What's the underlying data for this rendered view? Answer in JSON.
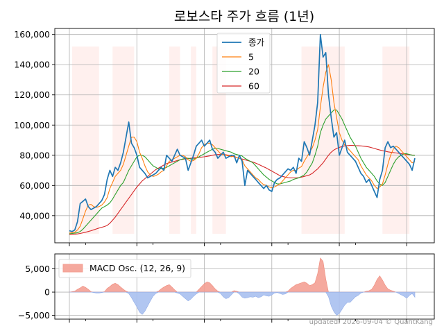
{
  "chart_data": [
    {
      "type": "line",
      "title": "로보스타 주가 흐름 (1년)",
      "ylim": [
        22000,
        164000
      ],
      "yticks": [
        {
          "value": 40000,
          "label": "40,000"
        },
        {
          "value": 60000,
          "label": "60,000"
        },
        {
          "value": 80000,
          "label": "80,000"
        },
        {
          "value": 100000,
          "label": "100,000"
        },
        {
          "value": 120000,
          "label": "120,000"
        },
        {
          "value": 140000,
          "label": "140,000"
        },
        {
          "value": 160000,
          "label": "160,000"
        }
      ],
      "grid": true,
      "legend": "top-center",
      "colors": {
        "close": "#1f77b4",
        "ma5": "#ff7f0e",
        "ma20": "#2ca02c",
        "ma60": "#d62728",
        "shade": "#fff0ee"
      },
      "series": [
        {
          "name": "종가",
          "key": "close",
          "values": [
            30000,
            29500,
            30500,
            36000,
            48000,
            49500,
            51000,
            46000,
            44000,
            45000,
            46000,
            48000,
            50000,
            54000,
            64000,
            70000,
            66000,
            72000,
            70000,
            75000,
            82000,
            92000,
            102000,
            88000,
            85000,
            80000,
            72000,
            70000,
            68000,
            65000,
            66000,
            67000,
            68000,
            70000,
            72000,
            70000,
            80000,
            78000,
            76000,
            80000,
            84000,
            80000,
            79000,
            78000,
            70000,
            75000,
            80000,
            86000,
            88000,
            90000,
            86000,
            88000,
            90000,
            84000,
            82000,
            78000,
            80000,
            82000,
            78000,
            79000,
            80000,
            80000,
            75000,
            80000,
            76000,
            60000,
            70000,
            68000,
            66000,
            64000,
            62000,
            60000,
            58000,
            60000,
            57000,
            56000,
            62000,
            64000,
            65000,
            67000,
            69000,
            71000,
            70000,
            72000,
            68000,
            78000,
            76000,
            89000,
            85000,
            80000,
            90000,
            100000,
            115000,
            160000,
            145000,
            148000,
            120000,
            105000,
            92000,
            95000,
            80000,
            85000,
            90000,
            82000,
            80000,
            78000,
            76000,
            72000,
            68000,
            66000,
            62000,
            64000,
            60000,
            56000,
            52000,
            64000,
            70000,
            85000,
            89000,
            85000,
            86000,
            84000,
            82000,
            80000,
            78000,
            76000,
            74000,
            70000,
            78000
          ]
        },
        {
          "name": "5",
          "key": "ma5",
          "values": [
            28500,
            28700,
            29000,
            30500,
            33000,
            38000,
            43000,
            47000,
            47500,
            46000,
            45500,
            46000,
            47000,
            49000,
            52000,
            58000,
            62000,
            66000,
            68000,
            70000,
            74000,
            80000,
            86000,
            92000,
            92000,
            89000,
            82000,
            78000,
            73000,
            69000,
            67000,
            66000,
            66500,
            67500,
            69000,
            70000,
            73000,
            76000,
            77000,
            78000,
            79000,
            80000,
            80000,
            79000,
            77000,
            76000,
            76500,
            78000,
            81000,
            85000,
            87000,
            88000,
            88000,
            87000,
            85000,
            83000,
            81000,
            80500,
            80000,
            79500,
            79000,
            79500,
            78500,
            78000,
            77000,
            73000,
            71000,
            69000,
            67000,
            65000,
            64000,
            62000,
            60500,
            60000,
            59000,
            58500,
            59000,
            60000,
            61000,
            63000,
            65000,
            67000,
            69000,
            70000,
            70000,
            71500,
            72500,
            76000,
            79000,
            82000,
            85000,
            90000,
            97000,
            112000,
            125000,
            135000,
            140000,
            130000,
            115000,
            105000,
            95000,
            90000,
            87000,
            85000,
            83000,
            81000,
            79000,
            77000,
            73000,
            70000,
            67000,
            65000,
            63000,
            60000,
            58000,
            59000,
            61000,
            67000,
            74000,
            80000,
            84000,
            86000,
            85000,
            83000,
            81000,
            79000,
            77000,
            75000,
            76000
          ]
        },
        {
          "name": "20",
          "key": "ma20",
          "values": [
            28000,
            28200,
            28400,
            28700,
            29500,
            31000,
            33000,
            35000,
            37000,
            39000,
            41000,
            43000,
            45000,
            46000,
            47000,
            48500,
            51000,
            54000,
            57000,
            60000,
            62000,
            66000,
            70000,
            73000,
            76000,
            79000,
            80000,
            80000,
            79000,
            77000,
            75000,
            73000,
            72000,
            71000,
            71000,
            71500,
            72000,
            73000,
            74000,
            75000,
            76000,
            77000,
            77500,
            78000,
            78000,
            77500,
            77500,
            78000,
            79000,
            80000,
            81000,
            82000,
            83000,
            84000,
            84500,
            84500,
            84000,
            83500,
            83000,
            82500,
            82000,
            81000,
            80500,
            80000,
            79500,
            78000,
            77000,
            76000,
            75000,
            73000,
            71000,
            69000,
            67000,
            65500,
            64000,
            63000,
            62000,
            61000,
            61000,
            61500,
            62000,
            62500,
            63000,
            64000,
            64500,
            65000,
            66000,
            67000,
            69000,
            72000,
            75000,
            80000,
            86000,
            95000,
            100000,
            104000,
            106000,
            108000,
            110000,
            110000,
            107000,
            104000,
            100000,
            96000,
            92000,
            89000,
            86000,
            82000,
            78000,
            75000,
            72000,
            70000,
            68000,
            66000,
            63000,
            61000,
            60000,
            62000,
            66000,
            70000,
            74000,
            77000,
            79000,
            80000,
            81000,
            81000,
            80500,
            80000,
            80000
          ]
        },
        {
          "name": "60",
          "key": "ma60",
          "values": [
            27500,
            27600,
            27700,
            27900,
            28200,
            28600,
            29000,
            29500,
            30000,
            30600,
            31200,
            31800,
            32300,
            32800,
            33500,
            35000,
            37000,
            39000,
            41500,
            44000,
            46500,
            49000,
            51500,
            54000,
            56500,
            59000,
            61000,
            63000,
            64500,
            66000,
            67500,
            69000,
            70500,
            71500,
            72500,
            73500,
            74500,
            75000,
            75500,
            76000,
            76500,
            77000,
            77300,
            77600,
            77800,
            78000,
            78200,
            78400,
            78600,
            78800,
            79000,
            79300,
            79600,
            80000,
            80300,
            80500,
            80500,
            80500,
            80300,
            80000,
            79500,
            79000,
            78500,
            78000,
            77500,
            77000,
            76500,
            76000,
            75500,
            74800,
            74000,
            73200,
            72300,
            71500,
            70500,
            69500,
            68500,
            67500,
            66500,
            66000,
            65500,
            65200,
            65000,
            65000,
            65000,
            65200,
            65500,
            66000,
            66500,
            67000,
            68000,
            69500,
            71000,
            73000,
            75000,
            77500,
            80000,
            82000,
            83500,
            84500,
            85200,
            85800,
            86200,
            86400,
            86500,
            86500,
            86400,
            86300,
            86200,
            86000,
            85800,
            85500,
            85000,
            84500,
            84000,
            83500,
            83000,
            82700,
            82300,
            82000,
            81800,
            81500,
            81300,
            81000,
            80800,
            80600,
            80400,
            80200,
            80000
          ]
        }
      ],
      "shaded_ranges": [
        [
          1,
          11
        ],
        [
          16,
          24
        ],
        [
          37,
          41
        ],
        [
          45,
          47
        ],
        [
          53,
          58
        ],
        [
          86,
          102
        ],
        [
          116,
          126
        ]
      ]
    },
    {
      "type": "area",
      "ylim": [
        -5800,
        8200
      ],
      "yticks": [
        {
          "value": -5000,
          "label": "−5,000"
        },
        {
          "value": 0,
          "label": "0"
        },
        {
          "value": 5000,
          "label": "5,000"
        }
      ],
      "grid": true,
      "legend": "top-left",
      "colors": {
        "positive": "#f4a093",
        "negative": "#a8c0ef"
      },
      "series": [
        {
          "name": "MACD Osc. (12, 26, 9)",
          "values": [
            0,
            100,
            200,
            600,
            900,
            1300,
            1000,
            600,
            100,
            -100,
            -200,
            -200,
            -100,
            100,
            800,
            1200,
            1700,
            1900,
            1600,
            1100,
            600,
            200,
            -300,
            -1200,
            -2200,
            -3200,
            -4300,
            -4800,
            -4100,
            -3000,
            -1900,
            -900,
            -300,
            200,
            700,
            1100,
            1400,
            1600,
            1100,
            500,
            -200,
            -400,
            -900,
            -1400,
            -1900,
            -1500,
            -900,
            -400,
            600,
            1200,
            1800,
            2200,
            2000,
            1400,
            700,
            200,
            -300,
            -1000,
            -1400,
            -1200,
            -600,
            300,
            200,
            -400,
            -1100,
            -1300,
            -1200,
            -1000,
            -1100,
            -900,
            -1200,
            -1000,
            -600,
            -800,
            -900,
            -600,
            -200,
            -100,
            -300,
            -500,
            -400,
            200,
            800,
            1200,
            1600,
            1800,
            2000,
            2200,
            1900,
            1400,
            1600,
            2000,
            4000,
            7300,
            6600,
            2800,
            -1000,
            -3000,
            -4200,
            -5000,
            -4600,
            -3700,
            -2800,
            -2200,
            -2200,
            -1600,
            -1000,
            -700,
            -200,
            0,
            200,
            300,
            600,
            1500,
            2700,
            3500,
            2600,
            1500,
            700,
            400,
            200,
            0,
            -300,
            -600,
            -900,
            -1300,
            -700,
            -300,
            -1100
          ]
        }
      ]
    }
  ],
  "footer": "updated: 2026-09-04 © QuantKang"
}
